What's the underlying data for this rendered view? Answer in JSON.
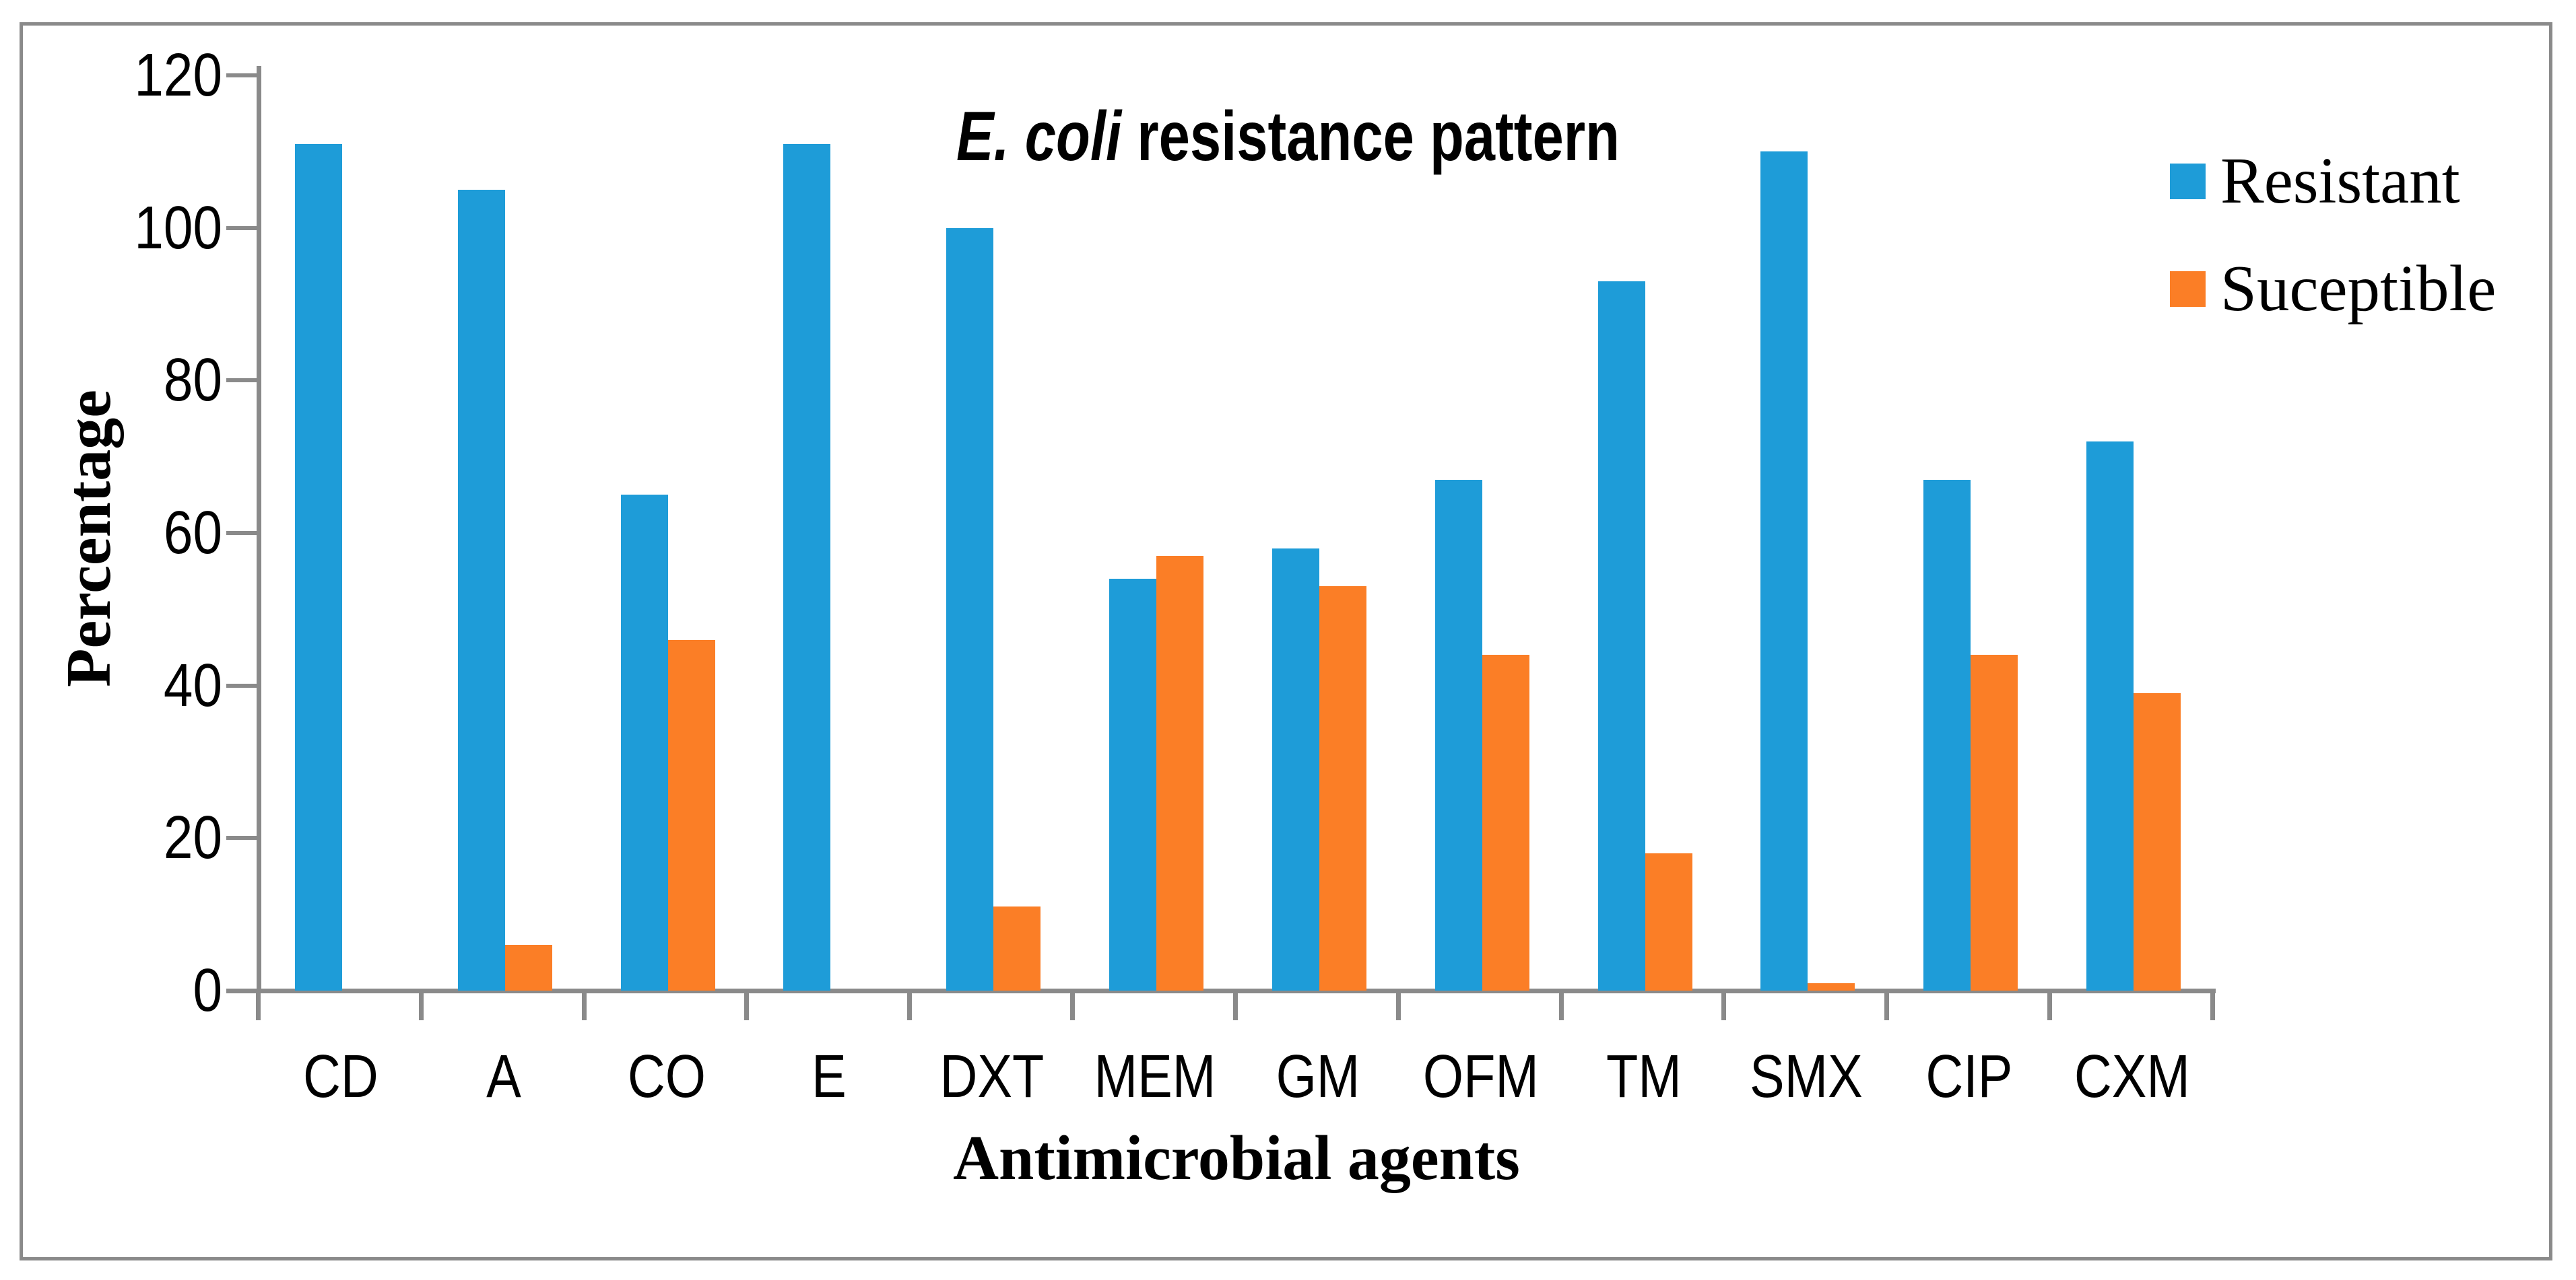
{
  "title": {
    "italic": "E. coli",
    "rest": " resistance pattern"
  },
  "y_axis": {
    "label": "Percentage",
    "tick_labels": [
      "0",
      "20",
      "40",
      "60",
      "80",
      "100",
      "120"
    ]
  },
  "x_axis": {
    "label": "Antimicrobial agents"
  },
  "legend": {
    "items": [
      {
        "label": "Resistant",
        "color": "#1E9CD8"
      },
      {
        "label": "Suceptible",
        "color": "#FB7E26"
      }
    ]
  },
  "colors": {
    "resistant": "#1E9CD8",
    "suceptible": "#FB7E26",
    "axis": "#8a8a8a",
    "border": "#8a8a8a",
    "text": "#000000"
  },
  "chart_data": {
    "type": "bar",
    "title": "E. coli resistance pattern",
    "xlabel": "Antimicrobial agents",
    "ylabel": "Percentage",
    "categories": [
      "CD",
      "A",
      "CO",
      "E",
      "DXT",
      "MEM",
      "GM",
      "OFM",
      "TM",
      "SMX",
      "CIP",
      "CXM"
    ],
    "series": [
      {
        "name": "Resistant",
        "color": "#1E9CD8",
        "values": [
          111,
          105,
          65,
          111,
          100,
          54,
          58,
          67,
          93,
          110,
          67,
          72
        ]
      },
      {
        "name": "Suceptible",
        "color": "#FB7E26",
        "values": [
          0,
          6,
          46,
          0,
          11,
          57,
          53,
          44,
          18,
          1,
          44,
          39
        ]
      }
    ],
    "ylim": [
      0,
      120
    ],
    "ytick_step": 20,
    "grid": false,
    "legend_position": "top-right"
  }
}
